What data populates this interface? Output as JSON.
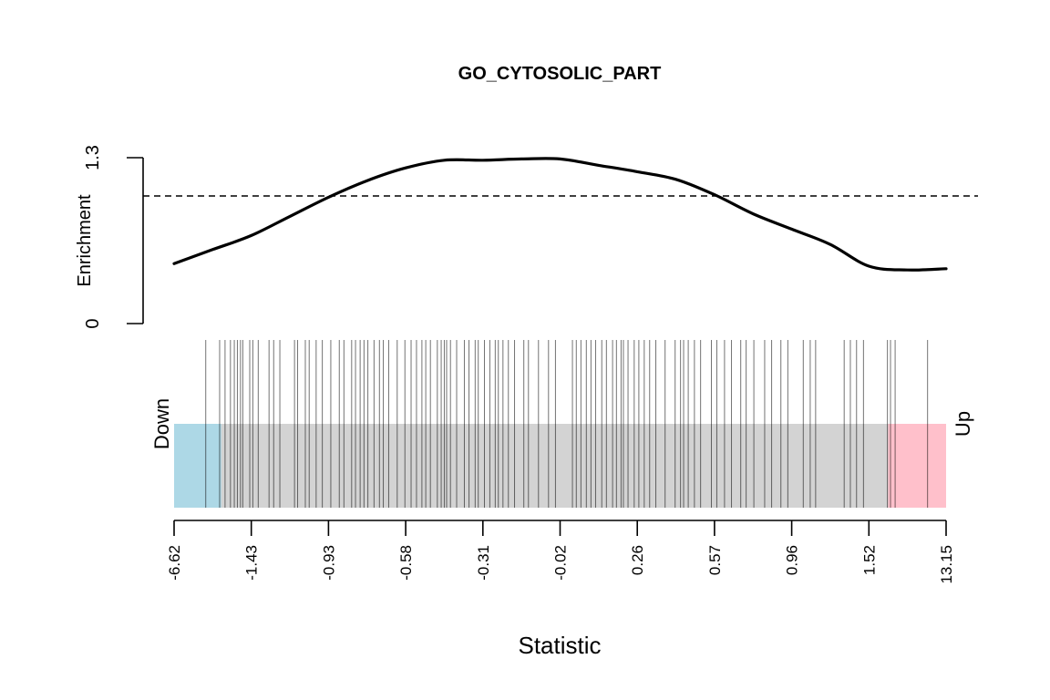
{
  "chart_data": {
    "type": "barcode",
    "title": "GO_CYTOSOLIC_PART",
    "xlabel": "Statistic",
    "ylabel": "Enrichment",
    "ylim": [
      0,
      1.3
    ],
    "y_ticks": [
      "0",
      "1.3"
    ],
    "reference_line": 1.0,
    "region_labels": {
      "down": "Down",
      "up": "Up"
    },
    "x_tick_labels": [
      "-6.62",
      "-1.43",
      "-0.93",
      "-0.58",
      "-0.31",
      "-0.02",
      "0.26",
      "0.57",
      "0.96",
      "1.52",
      "13.15"
    ],
    "rank_range": [
      0,
      100
    ],
    "shaded_regions": [
      {
        "name": "Down",
        "from_rank": 0,
        "to_rank": 6.1,
        "color": "#add8e6"
      },
      {
        "name": "Up",
        "from_rank": 92.5,
        "to_rank": 100,
        "color": "#ffc0cb"
      }
    ],
    "background_color": "#d3d3d3",
    "enrichment_curve": {
      "x_rank": [
        0,
        5,
        10,
        15,
        20,
        25,
        30,
        35,
        40,
        45,
        50,
        55,
        60,
        65,
        70,
        75,
        80,
        85,
        90,
        95,
        100
      ],
      "y": [
        0.47,
        0.58,
        0.69,
        0.84,
        0.99,
        1.12,
        1.22,
        1.28,
        1.28,
        1.29,
        1.29,
        1.24,
        1.19,
        1.13,
        1.01,
        0.86,
        0.74,
        0.62,
        0.45,
        0.42,
        0.43
      ]
    },
    "gene_ranks": [
      4.1,
      5.9,
      6.6,
      7.3,
      7.8,
      8.2,
      8.6,
      8.9,
      9.8,
      10.2,
      10.9,
      12.3,
      12.9,
      13.7,
      15.6,
      16.0,
      17.0,
      17.5,
      18.4,
      19.2,
      20.3,
      21.4,
      22.0,
      23.0,
      23.5,
      24.1,
      24.6,
      25.1,
      25.9,
      26.6,
      27.1,
      27.8,
      28.9,
      29.9,
      30.7,
      31.4,
      32.1,
      32.6,
      33.2,
      34.1,
      34.6,
      35.0,
      35.3,
      35.8,
      36.6,
      37.6,
      38.2,
      39.0,
      39.4,
      40.2,
      40.9,
      41.6,
      42.0,
      42.6,
      43.3,
      44.1,
      45.3,
      45.9,
      47.2,
      48.5,
      49.4,
      51.6,
      52.1,
      52.7,
      53.4,
      54.0,
      54.6,
      55.4,
      56.0,
      56.8,
      57.3,
      57.9,
      58.2,
      58.8,
      59.6,
      60.2,
      60.9,
      61.6,
      62.4,
      63.6,
      64.9,
      65.6,
      66.0,
      66.6,
      67.4,
      68.2,
      69.6,
      70.3,
      71.3,
      72.2,
      73.4,
      74.1,
      75.1,
      76.5,
      77.4,
      78.6,
      79.5,
      81.5,
      82.4,
      83.1,
      86.8,
      87.6,
      88.4,
      89.3,
      92.4,
      92.8,
      93.4,
      97.6
    ]
  }
}
